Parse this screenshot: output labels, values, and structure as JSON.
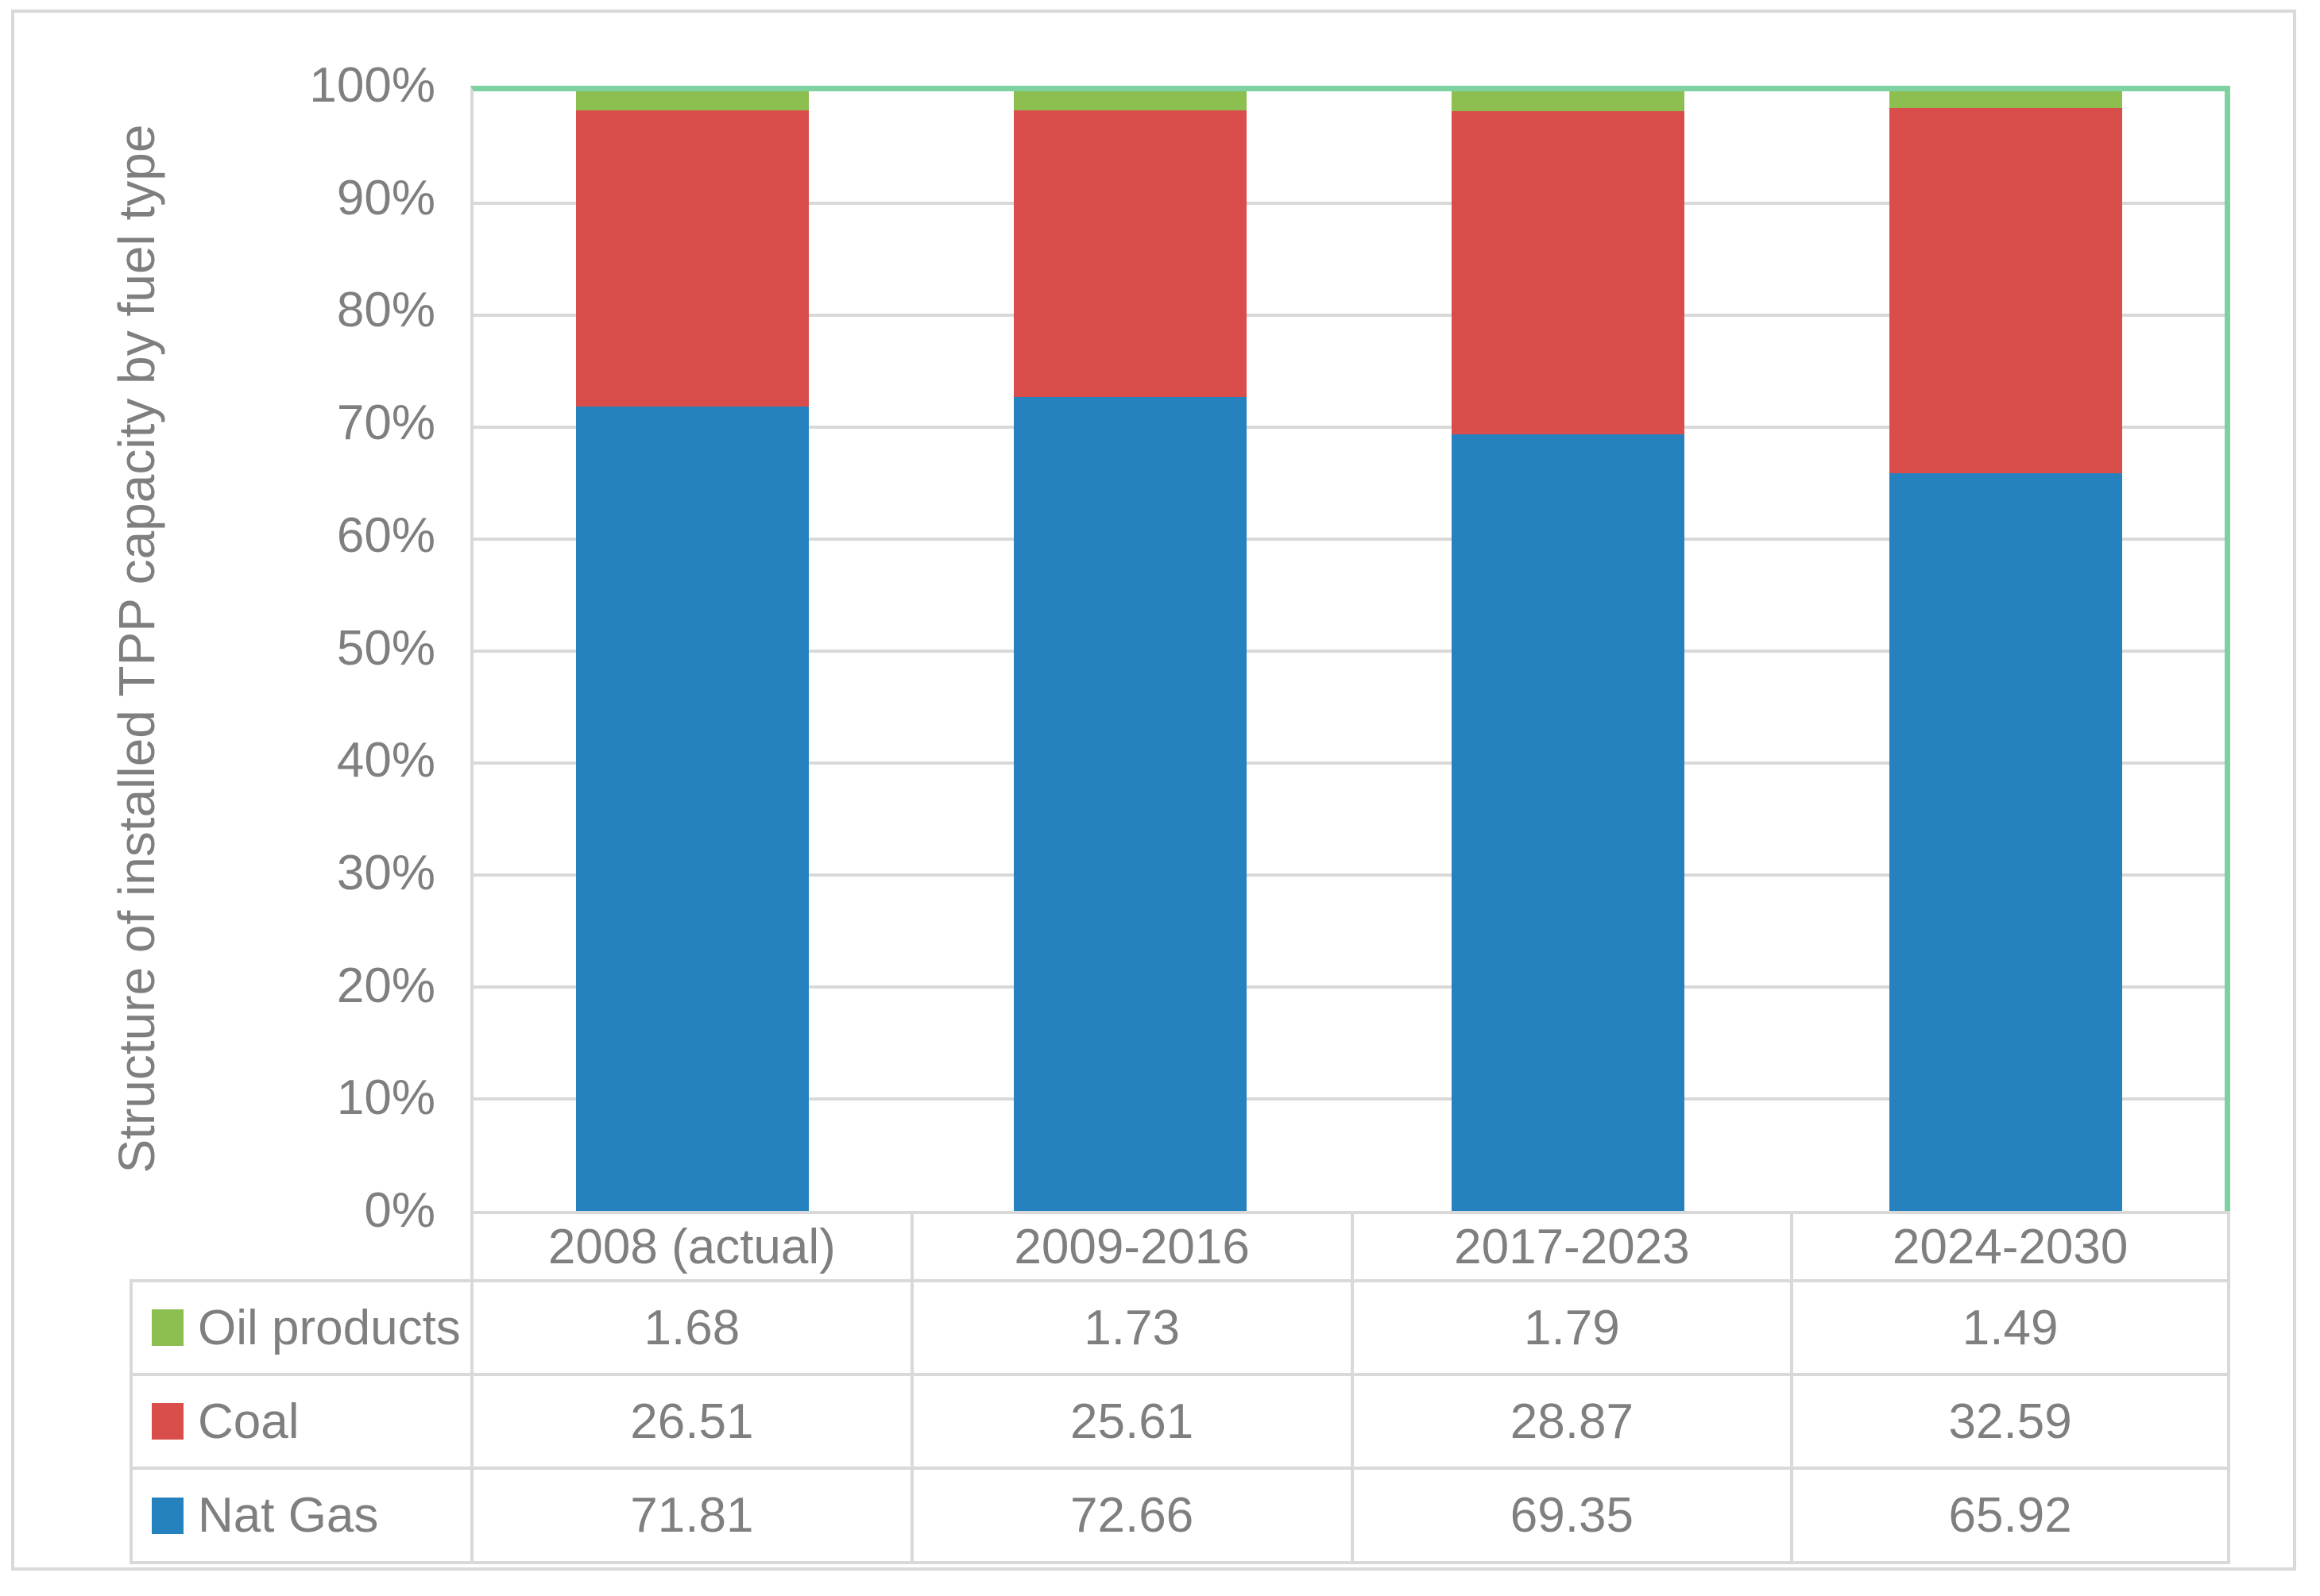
{
  "chart_data": {
    "type": "bar",
    "subtype": "stacked-100-percent",
    "title": "",
    "ylabel": "Structure of installed TPP capacity by fuel type",
    "xlabel": "",
    "categories": [
      "2008 (actual)",
      "2009-2016",
      "2017-2023",
      "2024-2030"
    ],
    "series": [
      {
        "name": "Oil products",
        "color": "#8CBE50",
        "values": [
          1.68,
          1.73,
          1.79,
          1.49
        ]
      },
      {
        "name": "Coal",
        "color": "#D94E4B",
        "values": [
          26.51,
          25.61,
          28.87,
          32.59
        ]
      },
      {
        "name": "Nat Gas",
        "color": "#2681BF",
        "values": [
          71.81,
          72.66,
          69.35,
          65.92
        ]
      }
    ],
    "y_ticks": [
      "0%",
      "10%",
      "20%",
      "30%",
      "40%",
      "50%",
      "60%",
      "70%",
      "80%",
      "90%",
      "100%"
    ],
    "ylim": [
      0,
      100
    ],
    "grid": true,
    "legend_position": "data-table-left"
  },
  "colors": {
    "bar_green": "#8CBE50",
    "bar_red": "#D94E4B",
    "bar_blue": "#2681BF",
    "plot_border_green": "#7DD2A0",
    "grid_gray": "#D9D9D9",
    "frame_gray": "#D9D9D9",
    "text_gray": "#7F7F7F",
    "background": "#FFFFFF"
  }
}
